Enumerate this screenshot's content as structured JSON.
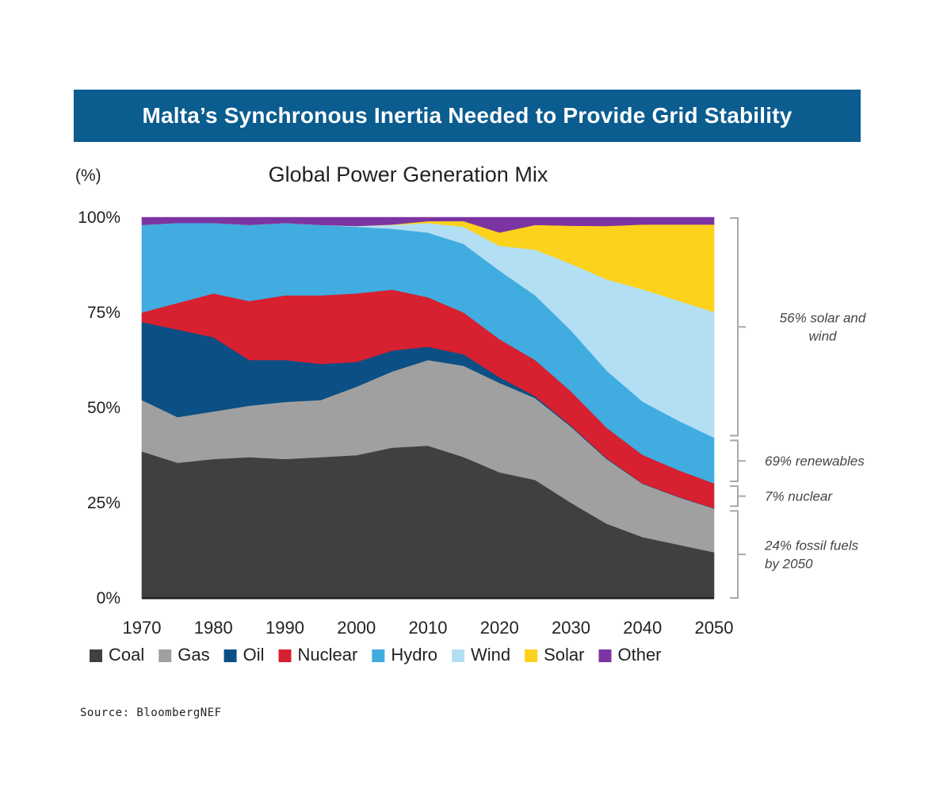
{
  "banner": {
    "title": "Malta’s Synchronous Inertia Needed to Provide Grid Stability"
  },
  "source": "Source: BloombergNEF",
  "chart_data": {
    "type": "area",
    "stacked": true,
    "title": "Global Power Generation Mix",
    "ylabel": "(%)",
    "xlabel": "",
    "ylim": [
      0,
      100
    ],
    "xlim": [
      1970,
      2050
    ],
    "x_ticks": [
      "1970",
      "1980",
      "1990",
      "2000",
      "2010",
      "2020",
      "2030",
      "2040",
      "2050"
    ],
    "y_ticks": [
      "0%",
      "25%",
      "50%",
      "75%",
      "100%"
    ],
    "x": [
      1970,
      1975,
      1980,
      1985,
      1990,
      1995,
      2000,
      2005,
      2010,
      2015,
      2020,
      2025,
      2030,
      2035,
      2040,
      2045,
      2050
    ],
    "series": [
      {
        "name": "Coal",
        "color": "#404040",
        "values": [
          38.5,
          35.5,
          36.5,
          37.0,
          36.5,
          37.0,
          37.5,
          39.5,
          40.0,
          37.0,
          33.0,
          31.0,
          25.0,
          19.5,
          16.0,
          14.0,
          12.0
        ]
      },
      {
        "name": "Gas",
        "color": "#a0a0a0",
        "values": [
          13.5,
          12.0,
          12.5,
          13.5,
          15.0,
          15.0,
          18.0,
          20.0,
          22.5,
          24.0,
          23.5,
          21.5,
          20.0,
          17.0,
          14.0,
          12.5,
          11.5
        ]
      },
      {
        "name": "Oil",
        "color": "#0b4f84",
        "values": [
          20.5,
          23.0,
          19.5,
          12.0,
          11.0,
          9.5,
          6.5,
          5.5,
          3.5,
          3.0,
          1.5,
          0.5,
          0.3,
          0.2,
          0.1,
          0.1,
          0.1
        ]
      },
      {
        "name": "Nuclear",
        "color": "#d72030",
        "values": [
          2.5,
          7.0,
          11.5,
          15.5,
          17.0,
          18.0,
          18.0,
          16.0,
          13.0,
          11.0,
          10.0,
          9.5,
          9.0,
          8.0,
          7.5,
          7.0,
          6.5
        ]
      },
      {
        "name": "Hydro",
        "color": "#41ace0",
        "values": [
          23.0,
          21.0,
          18.5,
          20.0,
          19.0,
          18.5,
          17.5,
          16.0,
          17.0,
          18.0,
          18.0,
          17.0,
          16.0,
          15.0,
          14.0,
          13.0,
          12.0
        ]
      },
      {
        "name": "Wind",
        "color": "#b2dff3",
        "values": [
          0.0,
          0.0,
          0.0,
          0.0,
          0.0,
          0.0,
          0.2,
          1.0,
          2.5,
          4.5,
          6.5,
          12.0,
          17.5,
          24.0,
          29.5,
          31.5,
          33.0
        ]
      },
      {
        "name": "Solar",
        "color": "#fcd21c",
        "values": [
          0.0,
          0.0,
          0.0,
          0.0,
          0.0,
          0.0,
          0.0,
          0.1,
          0.5,
          1.5,
          3.5,
          6.5,
          10.0,
          14.0,
          17.0,
          20.0,
          23.0
        ]
      },
      {
        "name": "Other",
        "color": "#7b35a3",
        "values": [
          2.0,
          1.5,
          1.5,
          2.0,
          1.5,
          2.0,
          2.3,
          1.9,
          1.0,
          1.0,
          4.0,
          2.0,
          2.2,
          2.3,
          1.9,
          1.9,
          1.9
        ]
      }
    ],
    "legend": {
      "position": "bottom",
      "items": [
        {
          "label": "Coal",
          "color": "#404040"
        },
        {
          "label": "Gas",
          "color": "#a0a0a0"
        },
        {
          "label": "Oil",
          "color": "#0b4f84"
        },
        {
          "label": "Nuclear",
          "color": "#d72030"
        },
        {
          "label": "Hydro",
          "color": "#41ace0"
        },
        {
          "label": "Wind",
          "color": "#b2dff3"
        },
        {
          "label": "Solar",
          "color": "#fcd21c"
        },
        {
          "label": "Other",
          "color": "#7b35a3"
        }
      ]
    },
    "annotations": [
      {
        "lines": [
          "56% solar and",
          "wind"
        ],
        "range": [
          42,
          100
        ],
        "align": "center"
      },
      {
        "lines": [
          "69% renewables"
        ],
        "range": [
          30,
          42
        ],
        "align": "left"
      },
      {
        "lines": [
          "7% nuclear"
        ],
        "range": [
          23.5,
          30
        ],
        "align": "left"
      },
      {
        "lines": [
          "24% fossil fuels",
          "by 2050"
        ],
        "range": [
          0,
          23.5
        ],
        "align": "left"
      }
    ]
  }
}
